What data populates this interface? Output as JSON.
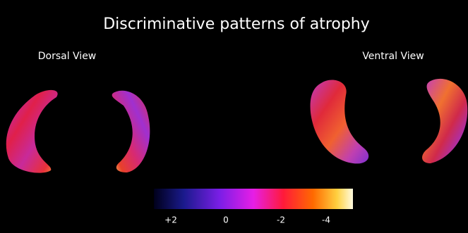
{
  "title": "Discriminative patterns of atrophy",
  "views": [
    "Dorsal View",
    "Ventral View"
  ],
  "colorbar": {
    "ticks": [
      "+2",
      "0",
      "-2",
      "-4"
    ]
  }
}
